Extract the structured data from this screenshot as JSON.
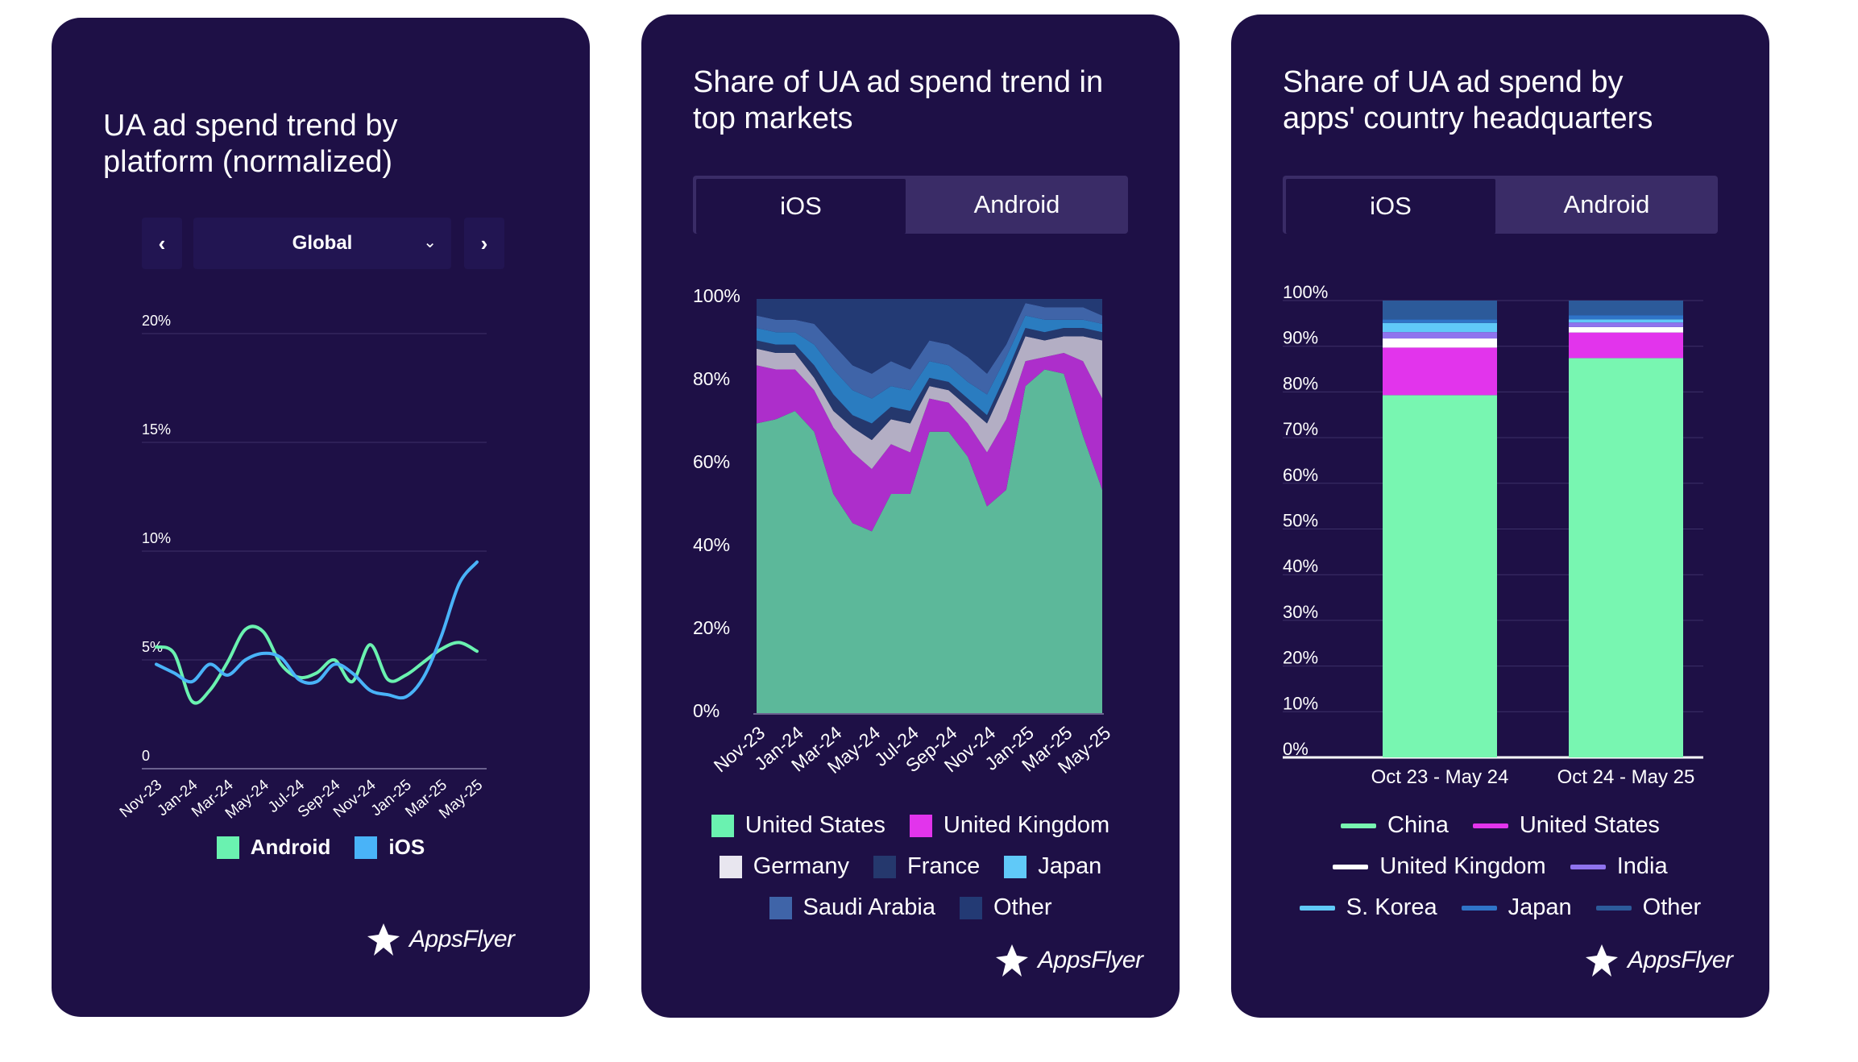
{
  "cards": [
    {
      "title_lines": [
        "UA ad spend trend by",
        "platform (normalized)"
      ],
      "selector": {
        "prev": "‹",
        "value": "Global",
        "caret": "⌄",
        "next": "›"
      },
      "legend": [
        "Android",
        "iOS"
      ],
      "logo": "AppsFlyer"
    },
    {
      "title_lines": [
        "Share of UA ad spend trend in",
        "top markets"
      ],
      "tabs": [
        "iOS",
        "Android"
      ],
      "legend_rows": [
        [
          "United States",
          "United Kingdom"
        ],
        [
          "Germany",
          "France",
          "Japan"
        ],
        [
          "Saudi Arabia",
          "Other"
        ]
      ],
      "logo": "AppsFlyer"
    },
    {
      "title_lines": [
        "Share of UA ad spend by",
        "apps' country headquarters"
      ],
      "tabs": [
        "iOS",
        "Android"
      ],
      "legend_rows": [
        [
          "China",
          "United States"
        ],
        [
          "United Kingdom",
          "India"
        ],
        [
          "S. Korea",
          "Japan",
          "Other"
        ]
      ],
      "logo": "AppsFlyer"
    }
  ],
  "chart_data": [
    {
      "type": "line",
      "title": "UA ad spend trend by platform (normalized)",
      "x": [
        "Nov-23",
        "Dec-23",
        "Jan-24",
        "Feb-24",
        "Mar-24",
        "Apr-24",
        "May-24",
        "Jun-24",
        "Jul-24",
        "Aug-24",
        "Sep-24",
        "Oct-24",
        "Nov-24",
        "Dec-24",
        "Jan-25",
        "Feb-25",
        "Mar-25",
        "Apr-25",
        "May-25"
      ],
      "x_ticks": [
        "Nov-23",
        "Jan-24",
        "Mar-24",
        "May-24",
        "Jul-24",
        "Sep-24",
        "Nov-24",
        "Jan-25",
        "Mar-25",
        "May-25"
      ],
      "y_ticks": [
        "0",
        "5%",
        "10%",
        "15%",
        "20%"
      ],
      "ylim": [
        0,
        20
      ],
      "series": [
        {
          "name": "Android",
          "color": "#6af2b0",
          "values": [
            5.6,
            5.3,
            3.1,
            3.6,
            4.9,
            6.4,
            6.3,
            4.8,
            4.2,
            4.4,
            5.0,
            4.0,
            5.7,
            4.1,
            4.3,
            4.9,
            5.5,
            5.8,
            5.4
          ]
        },
        {
          "name": "iOS",
          "color": "#49b3f8",
          "values": [
            4.8,
            4.4,
            4.0,
            4.8,
            4.3,
            5.0,
            5.3,
            5.1,
            4.1,
            4.0,
            4.8,
            4.4,
            3.6,
            3.4,
            3.3,
            4.2,
            6.1,
            8.5,
            9.5
          ]
        }
      ],
      "legend_placement": "bottom",
      "grid": true
    },
    {
      "type": "area",
      "title": "Share of UA ad spend trend in top markets",
      "selected_tab": "iOS",
      "x": [
        "Nov-23",
        "Dec-23",
        "Jan-24",
        "Feb-24",
        "Mar-24",
        "Apr-24",
        "May-24",
        "Jun-24",
        "Jul-24",
        "Aug-24",
        "Sep-24",
        "Oct-24",
        "Nov-24",
        "Dec-24",
        "Jan-25",
        "Feb-25",
        "Mar-25",
        "Apr-25",
        "May-25"
      ],
      "x_ticks": [
        "Nov-23",
        "Jan-24",
        "Mar-24",
        "May-24",
        "Jul-24",
        "Sep-24",
        "Nov-24",
        "Jan-25",
        "Mar-25",
        "May-25"
      ],
      "y_ticks": [
        "0%",
        "20%",
        "40%",
        "60%",
        "80%",
        "100%"
      ],
      "ylim": [
        0,
        100
      ],
      "stacked": true,
      "series": [
        {
          "name": "United States",
          "color": "#5cb89a",
          "values": [
            70,
            71,
            73,
            68,
            53,
            46,
            44,
            53,
            53,
            68,
            68,
            62,
            50,
            54,
            79,
            83,
            82,
            67,
            54
          ]
        },
        {
          "name": "United Kingdom",
          "color": "#ad2ecb",
          "values": [
            14,
            12,
            10,
            10,
            16,
            17,
            15,
            12,
            10,
            8,
            7,
            8,
            13,
            17,
            6,
            3,
            5,
            18,
            22
          ]
        },
        {
          "name": "Germany",
          "color": "#b3aec4",
          "values": [
            4,
            4,
            4,
            3,
            4,
            6,
            7,
            6,
            7,
            3,
            3,
            4,
            7,
            9,
            6,
            4,
            4,
            6,
            14
          ]
        },
        {
          "name": "France",
          "color": "#25386d",
          "values": [
            2,
            2,
            2,
            3,
            4,
            3,
            4,
            3,
            3,
            2,
            2,
            2,
            2,
            2,
            2,
            2,
            2,
            2,
            2
          ]
        },
        {
          "name": "Japan",
          "color": "#2a7cc0",
          "values": [
            3,
            3,
            3,
            5,
            6,
            6,
            6,
            5,
            5,
            4,
            4,
            4,
            5,
            4,
            3,
            3,
            2,
            2,
            2
          ]
        },
        {
          "name": "Saudi Arabia",
          "color": "#3f64a8",
          "values": [
            3,
            3,
            3,
            5,
            6,
            6,
            6,
            6,
            5,
            5,
            5,
            6,
            5,
            3,
            3,
            3,
            3,
            3,
            2
          ]
        },
        {
          "name": "Other",
          "color": "#233a74",
          "values": [
            4,
            5,
            5,
            6,
            11,
            16,
            18,
            15,
            17,
            10,
            11,
            14,
            18,
            11,
            1,
            2,
            2,
            2,
            4
          ]
        }
      ],
      "legend_placement": "bottom"
    },
    {
      "type": "bar",
      "title": "Share of UA ad spend by apps' country headquarters",
      "selected_tab": "iOS",
      "stacked": true,
      "categories": [
        "Oct 23 - May 24",
        "Oct 24 - May 25"
      ],
      "y_ticks": [
        "0%",
        "10%",
        "20%",
        "30%",
        "40%",
        "50%",
        "60%",
        "70%",
        "80%",
        "90%",
        "100%"
      ],
      "ylim": [
        0,
        100
      ],
      "series": [
        {
          "name": "China",
          "color": "#78f6b1",
          "values": [
            79.3,
            87.4
          ]
        },
        {
          "name": "United States",
          "color": "#e234ec",
          "values": [
            10.4,
            5.6
          ]
        },
        {
          "name": "United Kingdom",
          "color": "#ffffff",
          "values": [
            2.0,
            1.2
          ]
        },
        {
          "name": "India",
          "color": "#8f73ee",
          "values": [
            1.4,
            1.0
          ]
        },
        {
          "name": "S. Korea",
          "color": "#60c9f8",
          "values": [
            2.0,
            0.7
          ]
        },
        {
          "name": "Japan",
          "color": "#2f74c8",
          "values": [
            0.8,
            0.9
          ]
        },
        {
          "name": "Other",
          "color": "#2c5a9a",
          "values": [
            4.1,
            3.2
          ]
        }
      ],
      "legend_placement": "bottom"
    }
  ]
}
